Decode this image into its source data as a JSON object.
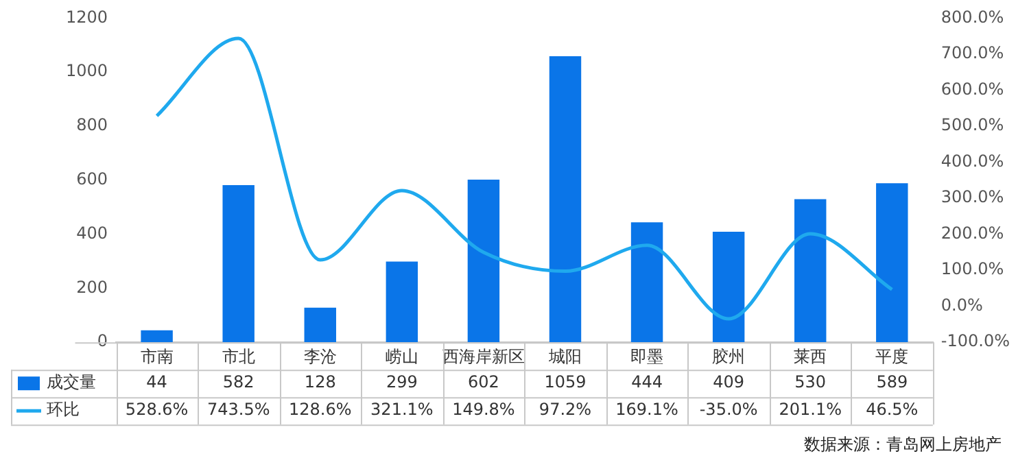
{
  "chart_data": {
    "type": "bar",
    "categories": [
      "市南",
      "市北",
      "李沧",
      "崂山",
      "西海岸新区",
      "城阳",
      "即墨",
      "胶州",
      "莱西",
      "平度"
    ],
    "series": [
      {
        "name": "成交量",
        "color": "#0a75e8",
        "values": [
          44,
          582,
          128,
          299,
          602,
          1059,
          444,
          409,
          530,
          589
        ],
        "value_labels": [
          "44",
          "582",
          "128",
          "299",
          "602",
          "1059",
          "444",
          "409",
          "530",
          "589"
        ]
      },
      {
        "name": "环比",
        "type": "line",
        "axis": "y2",
        "color": "#1fa9ee",
        "values": [
          528.6,
          743.5,
          128.6,
          321.1,
          149.8,
          97.2,
          169.1,
          -35.0,
          201.1,
          46.5
        ],
        "value_labels": [
          "528.6%",
          "743.5%",
          "128.6%",
          "321.1%",
          "149.8%",
          "97.2%",
          "169.1%",
          "-35.0%",
          "201.1%",
          "46.5%"
        ]
      }
    ],
    "ylim": [
      0,
      1200
    ],
    "yticks": [
      0,
      200,
      400,
      600,
      800,
      1000,
      1200
    ],
    "y2lim": [
      -100,
      800
    ],
    "y2ticks": [
      {
        "value": -100,
        "label": "-100.0%"
      },
      {
        "value": 0,
        "label": "0.0%"
      },
      {
        "value": 100,
        "label": "100.0%"
      },
      {
        "value": 200,
        "label": "200.0%"
      },
      {
        "value": 300,
        "label": "300.0%"
      },
      {
        "value": 400,
        "label": "400.0%"
      },
      {
        "value": 500,
        "label": "500.0%"
      },
      {
        "value": 600,
        "label": "600.0%"
      },
      {
        "value": 700,
        "label": "700.0%"
      },
      {
        "value": 800,
        "label": "800.0%"
      }
    ],
    "grid": false,
    "legend": "bottom left",
    "marker": "none",
    "line_style": "solid",
    "annotations": [
      "数据来源：青岛网上房地产"
    ]
  }
}
